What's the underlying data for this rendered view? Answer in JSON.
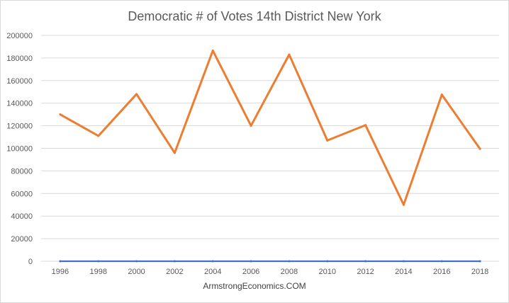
{
  "chart_data": {
    "type": "line",
    "title": "Democratic # of Votes 14th District New York",
    "xlabel": "",
    "ylabel": "",
    "categories": [
      "1996",
      "1998",
      "2000",
      "2002",
      "2004",
      "2006",
      "2008",
      "2010",
      "2012",
      "2014",
      "2016",
      "2018"
    ],
    "series": [
      {
        "values": [
          0,
          0,
          0,
          0,
          0,
          0,
          0,
          0,
          0,
          0,
          0,
          0
        ],
        "color": "#4472c4"
      },
      {
        "values": [
          130000,
          111000,
          148000,
          96000,
          186500,
          120000,
          183000,
          107000,
          120500,
          50000,
          147500,
          99500
        ],
        "color": "#ed7d31"
      }
    ],
    "ylim": [
      0,
      200000
    ],
    "yticks": [
      "0",
      "20000",
      "40000",
      "60000",
      "80000",
      "100000",
      "120000",
      "140000",
      "160000",
      "180000",
      "200000"
    ],
    "grid": true,
    "legend": "none"
  },
  "source": {
    "text": "ArmstrongEconomics.COM"
  }
}
